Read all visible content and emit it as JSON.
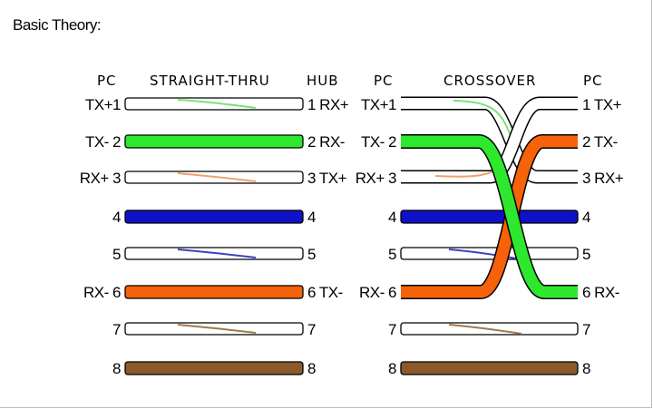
{
  "title": "Basic Theory:",
  "colors": {
    "white_wire": "#ffffff",
    "green": "#2ee82e",
    "blue": "#1010c8",
    "orange": "#f5620a",
    "brown": "#8b5a2b",
    "outline": "#000000",
    "stripe_green": "#7be27b",
    "stripe_orange": "#f0a070",
    "stripe_blue": "#4040c0",
    "stripe_brown": "#a07850"
  },
  "straight": {
    "header_left": "PC",
    "header_mid": "STRAIGHT-THRU",
    "header_right": "HUB",
    "left_labels": [
      "TX+1",
      "TX- 2",
      "RX+ 3",
      "4",
      "5",
      "RX- 6",
      "7",
      "8"
    ],
    "right_labels": [
      "1 RX+",
      "2 RX-",
      "3 TX+",
      "4",
      "5",
      "6 TX-",
      "7",
      "8"
    ]
  },
  "crossover": {
    "header_left": "PC",
    "header_mid": "CROSSOVER",
    "header_right": "PC",
    "left_labels": [
      "TX+1",
      "TX- 2",
      "RX+ 3",
      "4",
      "5",
      "RX- 6",
      "7",
      "8"
    ],
    "right_labels": [
      "1 TX+",
      "2 TX-",
      "3 RX+",
      "4",
      "5",
      "6 RX-",
      "7",
      "8"
    ]
  }
}
